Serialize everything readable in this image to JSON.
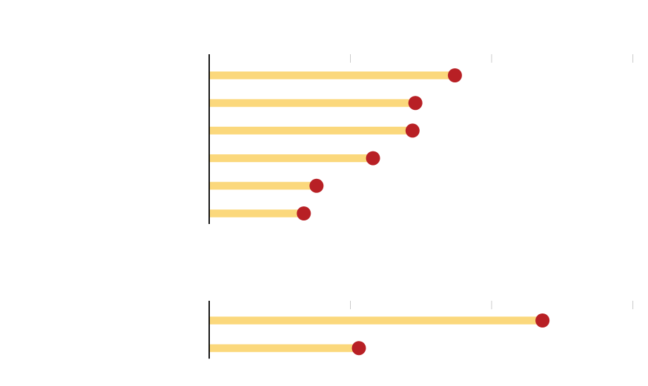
{
  "chart_data": [
    {
      "type": "lollipop",
      "orientation": "horizontal",
      "categories": [
        null,
        null,
        null,
        null,
        null,
        null
      ],
      "values": [
        1.74,
        1.46,
        1.44,
        1.16,
        0.76,
        0.67
      ],
      "color": "#fbd87c",
      "dot_color": "#b82025",
      "xlim": [
        0,
        3
      ],
      "xticks": [
        1,
        2,
        3
      ]
    },
    {
      "type": "lollipop",
      "orientation": "horizontal",
      "categories": [
        null,
        null
      ],
      "values": [
        2.36,
        1.06
      ],
      "color": "#fbd87c",
      "dot_color": "#b82025",
      "xlim": [
        0,
        3
      ],
      "xticks": [
        1,
        2,
        3
      ]
    }
  ]
}
